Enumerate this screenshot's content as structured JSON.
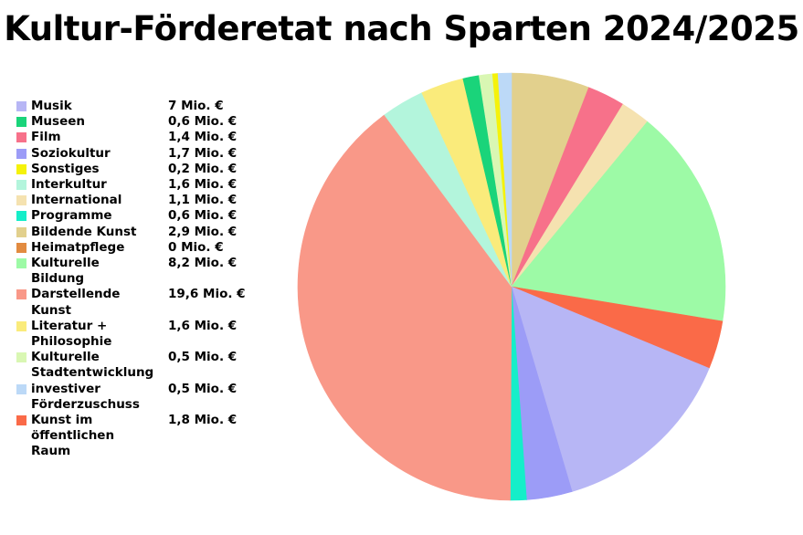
{
  "title": "Kultur-Förderetat nach Sparten 2024/2025",
  "chart_data": {
    "type": "pie",
    "title": "Kultur-Förderetat nach Sparten 2024/2025",
    "unit": "Mio. €",
    "legend_position": "left",
    "slices": [
      {
        "label": "Musik",
        "value": 7,
        "value_label": "7 Mio. €",
        "color": "#b7b6f5"
      },
      {
        "label": "Museen",
        "value": 0.6,
        "value_label": "0,6 Mio. €",
        "color": "#1ad47a"
      },
      {
        "label": "Film",
        "value": 1.4,
        "value_label": "1,4 Mio. €",
        "color": "#f7718a"
      },
      {
        "label": "Soziokultur",
        "value": 1.7,
        "value_label": "1,7 Mio. €",
        "color": "#9c9cf7"
      },
      {
        "label": "Sonstiges",
        "value": 0.2,
        "value_label": "0,2 Mio. €",
        "color": "#f5f20a"
      },
      {
        "label": "Interkultur",
        "value": 1.6,
        "value_label": "1,6 Mio. €",
        "color": "#b3f5dc"
      },
      {
        "label": "International",
        "value": 1.1,
        "value_label": "1,1 Mio. €",
        "color": "#f5e2b0"
      },
      {
        "label": "Programme",
        "value": 0.6,
        "value_label": "0,6 Mio. €",
        "color": "#15eec9"
      },
      {
        "label": "Bildende Kunst",
        "value": 2.9,
        "value_label": "2,9 Mio. €",
        "color": "#e2d08d"
      },
      {
        "label": "Heimatpflege",
        "value": 0,
        "value_label": "0 Mio. €",
        "color": "#e28b40"
      },
      {
        "label": "Kulturelle Bildung",
        "value": 8.2,
        "value_label": "8,2 Mio. €",
        "color": "#9dfaa6"
      },
      {
        "label": "Darstellende Kunst",
        "value": 19.6,
        "value_label": "19,6 Mio. €",
        "color": "#f99888"
      },
      {
        "label": "Literatur + Philosophie",
        "value": 1.6,
        "value_label": "1,6 Mio. €",
        "color": "#faeb7b"
      },
      {
        "label": "Kulturelle Stadtentwicklung",
        "value": 0.5,
        "value_label": "0,5 Mio. €",
        "color": "#d9f7b3"
      },
      {
        "label": "investiver Förderzuschuss",
        "value": 0.5,
        "value_label": "0,5 Mio. €",
        "color": "#bcd9f7"
      },
      {
        "label": "Kunst im öffentlichen Raum",
        "value": 1.8,
        "value_label": "1,8 Mio. €",
        "color": "#fa6a48"
      }
    ],
    "draw_order": [
      "Bildende Kunst",
      "Film",
      "International",
      "Kulturelle Bildung",
      "Kunst im öffentlichen Raum",
      "Musik",
      "Soziokultur",
      "Programme",
      "Darstellende Kunst",
      "Interkultur",
      "Literatur + Philosophie",
      "Museen",
      "Kulturelle Stadtentwicklung",
      "Sonstiges",
      "investiver Förderzuschuss",
      "Heimatpflege"
    ]
  }
}
